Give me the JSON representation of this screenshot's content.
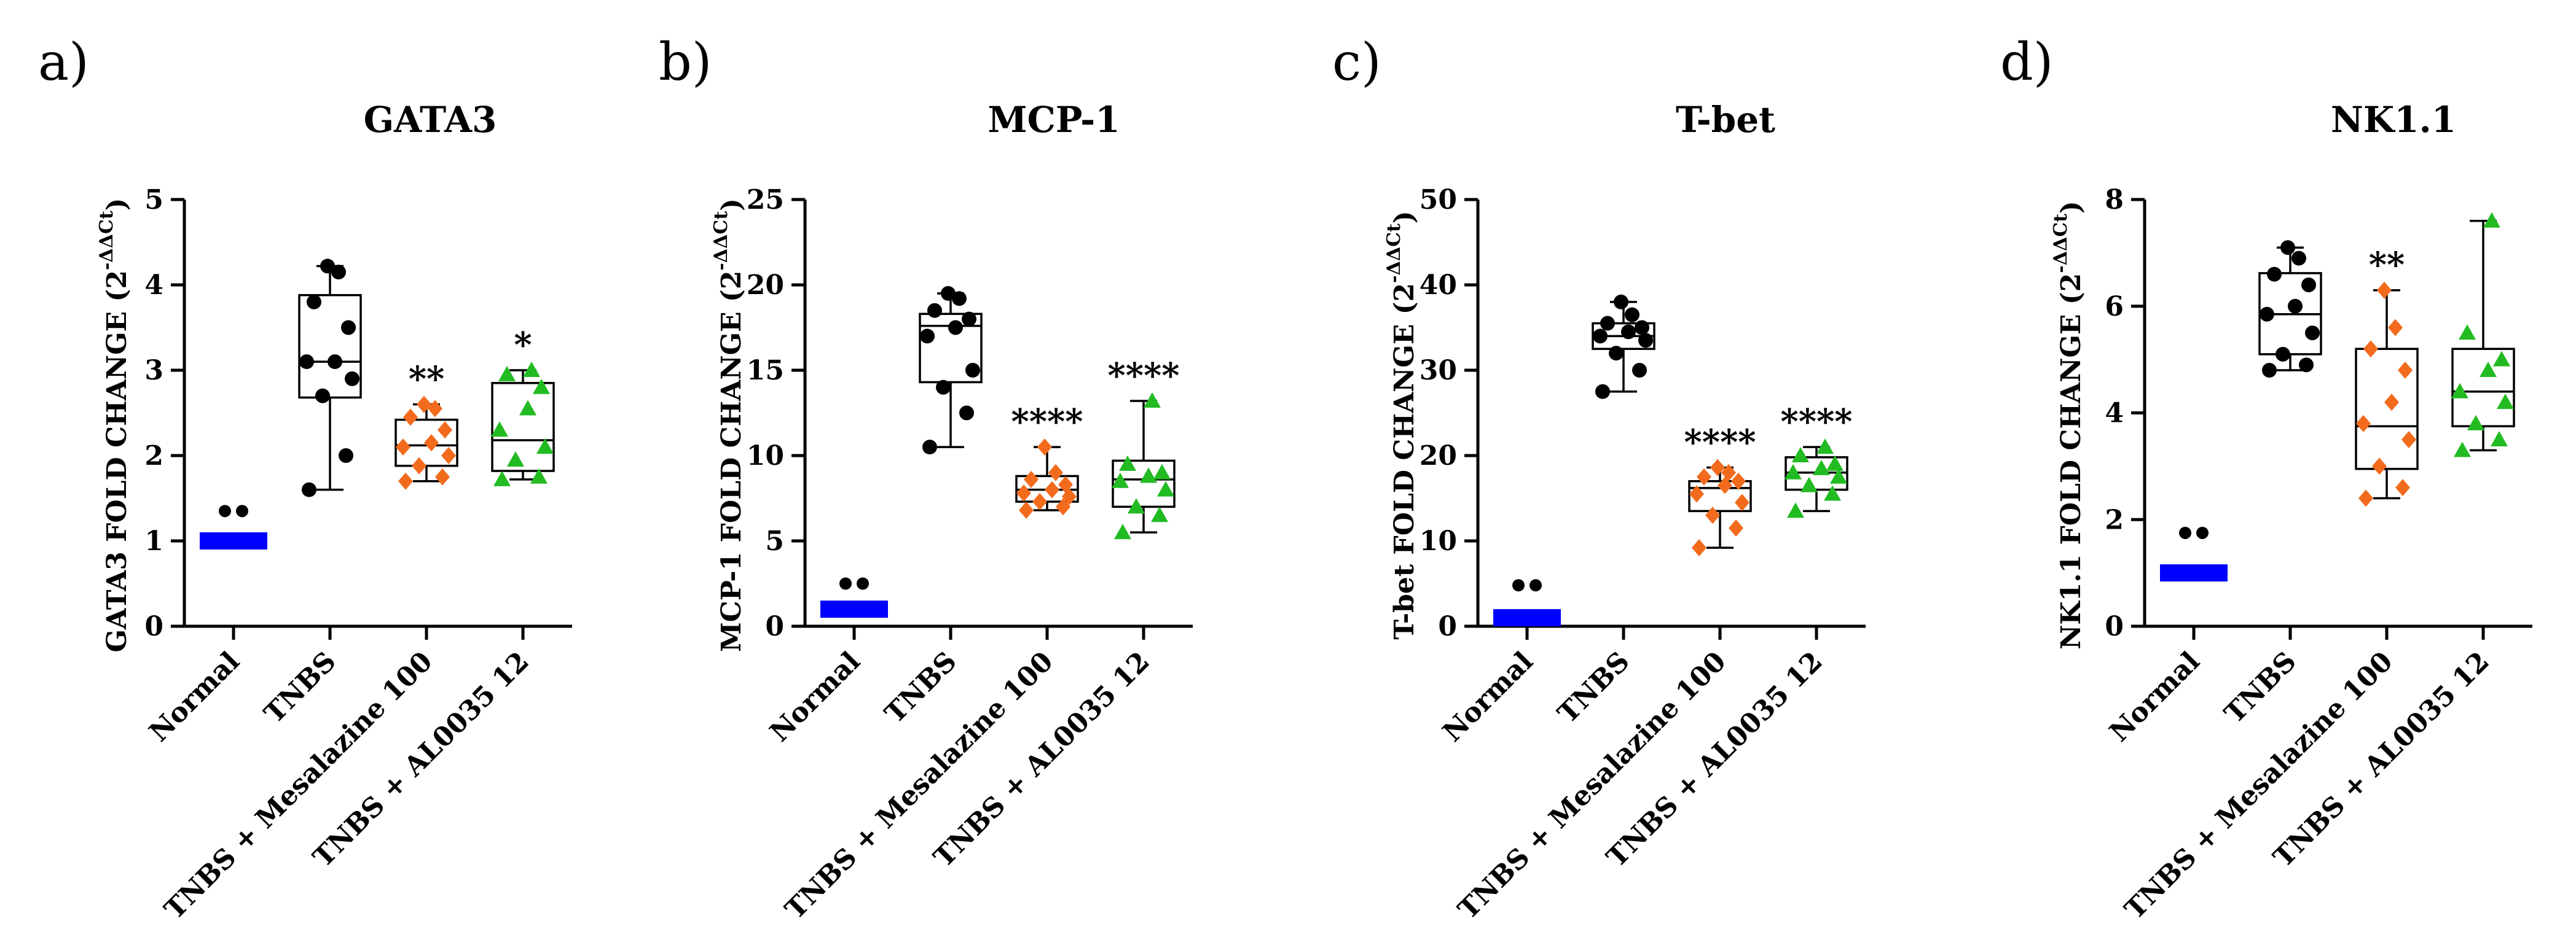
{
  "chart_data": [
    {
      "panel": "a)",
      "type": "box",
      "title": "GATA3",
      "ylabel_prefix": "GATA3 FOLD CHANGE (2",
      "ylabel_sup": "-ΔΔCt",
      "ylabel_suffix": ")",
      "ylim": [
        0,
        5
      ],
      "yticks": [
        "0",
        "1",
        "2",
        "3",
        "4",
        "5"
      ],
      "ytick_values": [
        0,
        1,
        2,
        3,
        4,
        5
      ],
      "categories": [
        "Normal",
        "TNBS",
        "TNBS + Mesalazine 100",
        "TNBS + AL0035 12"
      ],
      "groups": [
        {
          "name": "Normal",
          "color": "#0000ff",
          "marker": "bar",
          "box": [
            1,
            1,
            1,
            1,
            1
          ],
          "points": [
            1.0
          ],
          "outliers": [
            1.35,
            1.35
          ],
          "sig": ""
        },
        {
          "name": "TNBS",
          "color": "#000000",
          "marker": "circle",
          "box": [
            1.6,
            2.68,
            3.1,
            3.88,
            4.22
          ],
          "points": [
            1.6,
            2.0,
            2.7,
            2.9,
            3.1,
            3.1,
            3.5,
            3.8,
            4.15,
            4.22
          ],
          "sig": ""
        },
        {
          "name": "TNBS + Mesalazine 100",
          "color": "#f26b1d",
          "marker": "diamond",
          "box": [
            1.7,
            1.88,
            2.12,
            2.42,
            2.6
          ],
          "points": [
            1.7,
            1.75,
            1.88,
            2.0,
            2.1,
            2.15,
            2.3,
            2.45,
            2.55,
            2.6
          ],
          "sig": "**"
        },
        {
          "name": "TNBS + AL0035 12",
          "color": "#22bb22",
          "marker": "triangle",
          "box": [
            1.72,
            1.82,
            2.18,
            2.85,
            3.0
          ],
          "points": [
            1.72,
            1.75,
            1.95,
            2.1,
            2.3,
            2.55,
            2.8,
            2.95,
            3.0
          ],
          "sig": "*"
        }
      ]
    },
    {
      "panel": "b)",
      "type": "box",
      "title": "MCP-1",
      "ylabel_prefix": "MCP-1 FOLD CHANGE (2",
      "ylabel_sup": "-ΔΔCt",
      "ylabel_suffix": ")",
      "ylim": [
        0,
        25
      ],
      "yticks": [
        "0",
        "5",
        "10",
        "15",
        "20",
        "25"
      ],
      "ytick_values": [
        0,
        5,
        10,
        15,
        20,
        25
      ],
      "categories": [
        "Normal",
        "TNBS",
        "TNBS + Mesalazine 100",
        "TNBS + AL0035 12"
      ],
      "groups": [
        {
          "name": "Normal",
          "color": "#0000ff",
          "marker": "bar",
          "box": [
            1,
            1,
            1,
            1,
            1
          ],
          "points": [
            1.0
          ],
          "outliers": [
            2.5,
            2.5
          ],
          "sig": ""
        },
        {
          "name": "TNBS",
          "color": "#000000",
          "marker": "circle",
          "box": [
            10.5,
            14.3,
            17.6,
            18.3,
            19.5
          ],
          "points": [
            10.5,
            12.5,
            14.0,
            15.0,
            17.0,
            17.5,
            18.0,
            18.5,
            19.2,
            19.5
          ],
          "sig": ""
        },
        {
          "name": "TNBS + Mesalazine 100",
          "color": "#f26b1d",
          "marker": "diamond",
          "box": [
            6.8,
            7.3,
            8.0,
            8.8,
            10.5
          ],
          "points": [
            6.8,
            7.0,
            7.3,
            7.6,
            7.8,
            8.0,
            8.3,
            8.6,
            9.0,
            10.5
          ],
          "sig": "****"
        },
        {
          "name": "TNBS + AL0035 12",
          "color": "#22bb22",
          "marker": "triangle",
          "box": [
            5.5,
            7.0,
            8.6,
            9.7,
            13.2
          ],
          "points": [
            5.5,
            6.5,
            7.0,
            8.0,
            8.5,
            8.8,
            9.0,
            9.5,
            13.2
          ],
          "sig": "****"
        }
      ]
    },
    {
      "panel": "c)",
      "type": "box",
      "title": "T-bet",
      "ylabel_prefix": "T-bet FOLD CHANGE (2",
      "ylabel_sup": "-ΔΔCt",
      "ylabel_suffix": ")",
      "ylim": [
        0,
        50
      ],
      "yticks": [
        "0",
        "10",
        "20",
        "30",
        "40",
        "50"
      ],
      "ytick_values": [
        0,
        10,
        20,
        30,
        40,
        50
      ],
      "categories": [
        "Normal",
        "TNBS",
        "TNBS + Mesalazine 100",
        "TNBS + AL0035 12"
      ],
      "groups": [
        {
          "name": "Normal",
          "color": "#0000ff",
          "marker": "bar",
          "box": [
            1,
            1,
            1,
            1,
            1
          ],
          "points": [
            1.0
          ],
          "outliers": [
            4.8,
            4.8
          ],
          "sig": ""
        },
        {
          "name": "TNBS",
          "color": "#000000",
          "marker": "circle",
          "box": [
            27.5,
            32.5,
            34.0,
            35.5,
            38.0
          ],
          "points": [
            27.5,
            30.0,
            32.0,
            33.5,
            34.0,
            34.5,
            35.0,
            35.5,
            36.5,
            38.0
          ],
          "sig": ""
        },
        {
          "name": "TNBS + Mesalazine 100",
          "color": "#f26b1d",
          "marker": "diamond",
          "box": [
            9.2,
            13.5,
            16.2,
            17.0,
            18.6
          ],
          "points": [
            9.2,
            11.5,
            13.0,
            14.5,
            15.5,
            16.5,
            17.0,
            17.5,
            18.0,
            18.6
          ],
          "sig": "****"
        },
        {
          "name": "TNBS + AL0035 12",
          "color": "#22bb22",
          "marker": "triangle",
          "box": [
            13.5,
            16.0,
            18.0,
            19.8,
            21.0
          ],
          "points": [
            13.5,
            15.5,
            16.5,
            17.5,
            18.0,
            18.5,
            19.0,
            20.0,
            21.0
          ],
          "sig": "****"
        }
      ]
    },
    {
      "panel": "d)",
      "type": "box",
      "title": "NK1.1",
      "ylabel_prefix": "NK1.1 FOLD CHANGE (2",
      "ylabel_sup": "-ΔΔCt",
      "ylabel_suffix": ")",
      "ylim": [
        0,
        8
      ],
      "yticks": [
        "0",
        "2",
        "4",
        "6",
        "8"
      ],
      "ytick_values": [
        0,
        2,
        4,
        6,
        8
      ],
      "categories": [
        "Normal",
        "TNBS",
        "TNBS + Mesalazine 100",
        "TNBS + AL0035 12"
      ],
      "groups": [
        {
          "name": "Normal",
          "color": "#0000ff",
          "marker": "bar",
          "box": [
            1,
            1,
            1,
            1,
            1
          ],
          "points": [
            1.0
          ],
          "outliers": [
            1.75,
            1.75
          ],
          "sig": ""
        },
        {
          "name": "TNBS",
          "color": "#000000",
          "marker": "circle",
          "box": [
            4.8,
            5.1,
            5.85,
            6.62,
            7.1
          ],
          "points": [
            4.8,
            4.9,
            5.1,
            5.5,
            5.85,
            6.0,
            6.4,
            6.6,
            6.9,
            7.1
          ],
          "sig": ""
        },
        {
          "name": "TNBS + Mesalazine 100",
          "color": "#f26b1d",
          "marker": "diamond",
          "box": [
            2.4,
            2.95,
            3.75,
            5.2,
            6.3
          ],
          "points": [
            2.4,
            2.6,
            3.0,
            3.5,
            3.8,
            4.2,
            4.8,
            5.2,
            5.6,
            6.3
          ],
          "sig": "**"
        },
        {
          "name": "TNBS + AL0035 12",
          "color": "#22bb22",
          "marker": "triangle",
          "box": [
            3.3,
            3.75,
            4.4,
            5.2,
            7.6
          ],
          "points": [
            3.3,
            3.5,
            3.8,
            4.2,
            4.4,
            4.8,
            5.0,
            5.5,
            7.6
          ],
          "sig": ""
        }
      ]
    }
  ]
}
